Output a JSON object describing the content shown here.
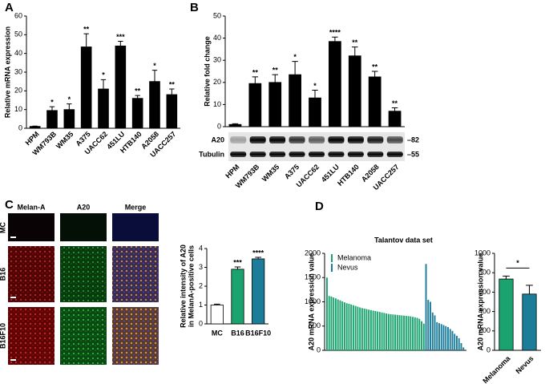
{
  "panel_labels": [
    "A",
    "B",
    "C",
    "D"
  ],
  "microscopy": {
    "columns": [
      "Melan-A",
      "A20",
      "Merge"
    ],
    "rows": [
      "MC",
      "B16",
      "B16F10"
    ]
  },
  "blot": {
    "rows": [
      "A20",
      "Tubulin"
    ],
    "markers": [
      "–82",
      "–55"
    ]
  },
  "chart_data": [
    {
      "type": "bar",
      "ylabel": "Relative mRNA expression",
      "categories": [
        "HPM",
        "WM793B",
        "WM35",
        "A375",
        "UACC62",
        "451LU",
        "HTB140",
        "A2058",
        "UACC257"
      ],
      "values": [
        1,
        9.5,
        10,
        43.5,
        21,
        44,
        16,
        25,
        18
      ],
      "errors": [
        0.2,
        2,
        3,
        7,
        5,
        2.5,
        1.5,
        6,
        3
      ],
      "annotations": [
        null,
        "*",
        "*",
        "**",
        "*",
        "***",
        "**",
        "*",
        "**"
      ],
      "color": "#000000",
      "ylim": [
        0,
        60
      ],
      "yticks": [
        0,
        10,
        20,
        30,
        40,
        50,
        60
      ]
    },
    {
      "type": "bar",
      "ylabel": "Relative fold change",
      "categories": [
        "HPM",
        "WM793B",
        "WM35",
        "A375",
        "UACC62",
        "451LU",
        "HTB140",
        "A2058",
        "UACC257"
      ],
      "values": [
        1,
        19.5,
        20,
        23.5,
        13,
        38.5,
        32,
        22.5,
        7
      ],
      "errors": [
        0.3,
        3,
        3.5,
        6,
        3.5,
        2,
        4,
        2.5,
        1.5
      ],
      "annotations": [
        null,
        "**",
        "**",
        "*",
        "*",
        "****",
        "**",
        "**",
        "**"
      ],
      "color": "#000000",
      "ylim": [
        0,
        50
      ],
      "yticks": [
        0,
        10,
        20,
        30,
        40,
        50
      ]
    },
    {
      "type": "bar",
      "ylabel": [
        "Relative intensity of A20",
        "in MelanA-positive cells"
      ],
      "categories": [
        "MC",
        "B16",
        "B16F10"
      ],
      "values": [
        1,
        2.9,
        3.45
      ],
      "errors": [
        0.05,
        0.12,
        0.08
      ],
      "annotations": [
        null,
        "***",
        "****"
      ],
      "colors": [
        "#ffffff",
        "#1aa36f",
        "#1b7d99"
      ],
      "ylim": [
        0,
        4
      ],
      "yticks": [
        0,
        1,
        2,
        3,
        4
      ]
    },
    {
      "type": "bar",
      "title": "Talantov data set",
      "ylabel": "A20 mRNA expression value",
      "series": [
        {
          "name": "Melanoma",
          "color": "#1aa36f",
          "values": [
            1500,
            1120,
            1110,
            1090,
            1070,
            1050,
            1030,
            1010,
            990,
            970,
            960,
            945,
            930,
            915,
            900,
            885,
            870,
            860,
            850,
            840,
            830,
            820,
            810,
            800,
            790,
            780,
            770,
            760,
            750,
            745,
            740,
            735,
            730,
            725,
            720,
            715,
            710,
            705,
            700,
            690,
            680,
            670,
            650,
            600,
            550
          ]
        },
        {
          "name": "Nevus",
          "color": "#1b7d99",
          "values": [
            1780,
            1040,
            1000,
            780,
            720,
            580,
            560,
            540,
            520,
            500,
            480,
            440,
            400,
            340,
            300,
            250,
            150,
            60
          ]
        }
      ],
      "legend": "upper left",
      "ylim": [
        0,
        2000
      ],
      "yticks": [
        0,
        500,
        1000,
        1500,
        2000
      ]
    },
    {
      "type": "bar",
      "ylabel": "A20 mRNA expression value",
      "categories": [
        "Melanoma",
        "Nevus"
      ],
      "values": [
        735,
        580
      ],
      "errors": [
        30,
        90
      ],
      "colors": [
        "#1aa36f",
        "#1b7d99"
      ],
      "bracket": "*",
      "ylim": [
        0,
        1000
      ],
      "yticks": [
        0,
        200,
        400,
        600,
        800,
        1000
      ]
    }
  ]
}
